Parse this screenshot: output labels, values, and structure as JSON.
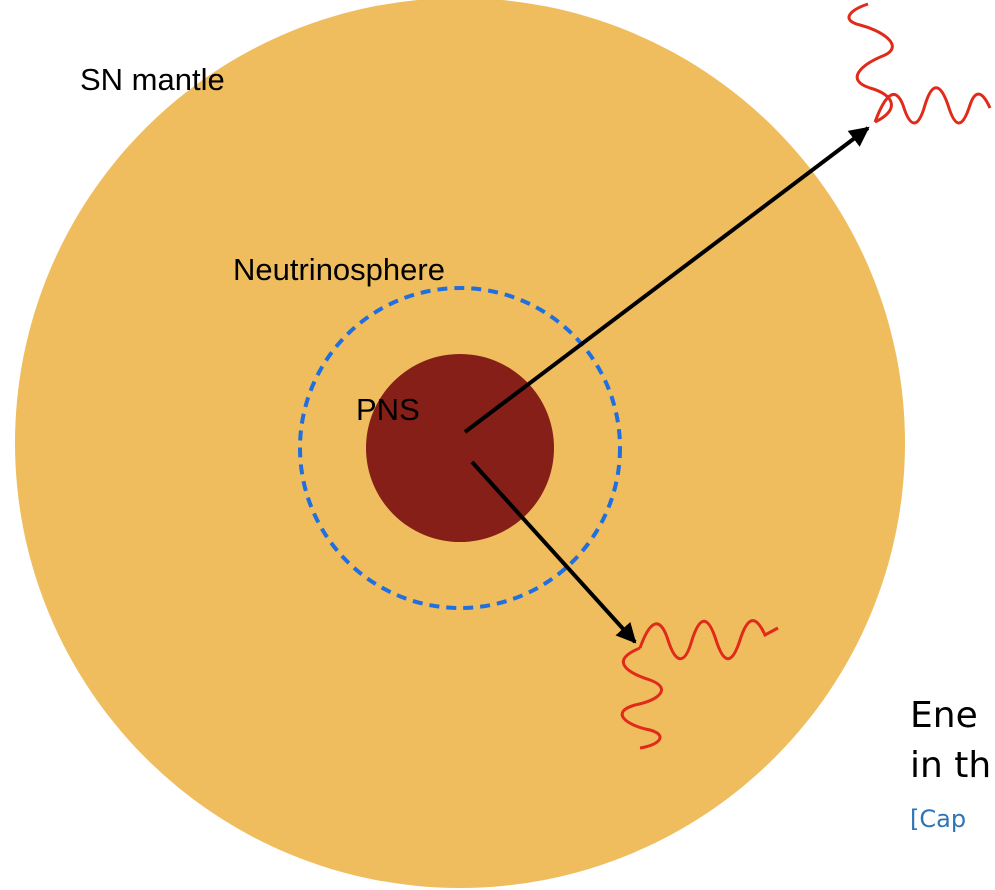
{
  "labels": {
    "mantle": "SN mantle",
    "neutrinosphere": "Neutrinosphere",
    "pns": "PNS"
  },
  "side_text": {
    "line1": "Ene",
    "line2": "in th",
    "citation": "[Cap"
  }
}
